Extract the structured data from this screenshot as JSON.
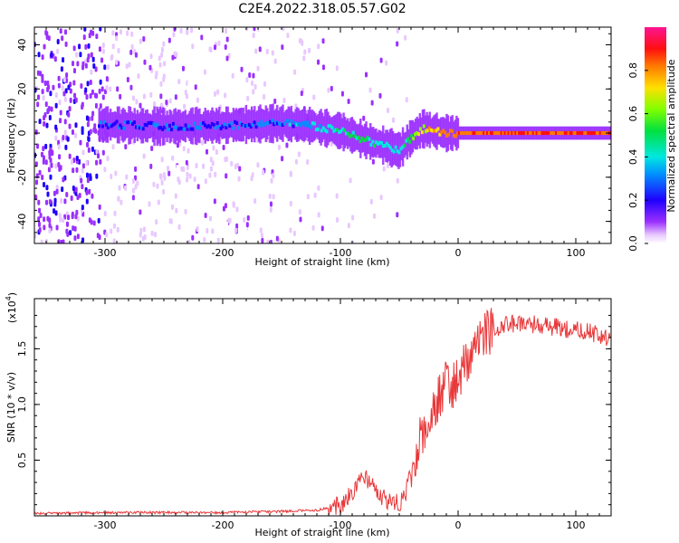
{
  "title": "C2E4.2022.318.05.57.G02",
  "colorbar": {
    "label": "Normalized spectral amplitude",
    "ticks": [
      "0.0",
      "0.2",
      "0.4",
      "0.6",
      "0.8"
    ],
    "tick_values": [
      0.0,
      0.2,
      0.4,
      0.6,
      0.8
    ]
  },
  "chart_data": [
    {
      "type": "heatmap",
      "xlabel": "Height of straight line (km)",
      "ylabel": "Frequency (Hz)",
      "xlim": [
        -360,
        130
      ],
      "ylim": [
        -50,
        48
      ],
      "x_ticks": [
        -300,
        -200,
        -100,
        0,
        100
      ],
      "x_tick_labels": [
        "-300",
        "-200",
        "-100",
        "0",
        "100"
      ],
      "y_ticks": [
        -40,
        -20,
        0,
        20,
        40
      ],
      "y_tick_labels": [
        "-40",
        "-20",
        "0",
        "20",
        "40"
      ],
      "value_range": [
        0,
        1
      ],
      "ridge": {
        "x": [
          -305,
          -250,
          -200,
          -150,
          -120,
          -100,
          -80,
          -60,
          -50,
          -45,
          -40,
          -30,
          -20,
          -10,
          0,
          50,
          100,
          130
        ],
        "y": [
          4,
          3,
          3.5,
          4.5,
          3,
          1,
          -3,
          -6,
          -8,
          -5,
          -2,
          2,
          1,
          0,
          0,
          0,
          0,
          0
        ],
        "amplitude": [
          0.3,
          0.3,
          0.3,
          0.35,
          0.4,
          0.5,
          0.55,
          0.45,
          0.5,
          0.55,
          0.6,
          0.75,
          0.8,
          0.85,
          0.88,
          0.9,
          0.9,
          0.9
        ]
      }
    },
    {
      "type": "line",
      "xlabel": "Height of straight line (km)",
      "ylabel": "SNR (10 * v/v)",
      "y_multiplier": "(x10",
      "y_multiplier_exp": "4",
      "y_multiplier_close": ")",
      "xlim": [
        -360,
        130
      ],
      "ylim": [
        0,
        1.95
      ],
      "x_ticks": [
        -300,
        -200,
        -100,
        0,
        100
      ],
      "x_tick_labels": [
        "-300",
        "-200",
        "-100",
        "0",
        "100"
      ],
      "y_ticks": [
        0.5,
        1.0,
        1.5
      ],
      "y_tick_labels": [
        "0.5",
        "1.0",
        "1.5"
      ],
      "series": [
        {
          "color": "#e8383a",
          "x": [
            -360,
            -300,
            -200,
            -150,
            -120,
            -100,
            -90,
            -85,
            -80,
            -75,
            -70,
            -65,
            -60,
            -55,
            -50,
            -45,
            -40,
            -35,
            -30,
            -25,
            -20,
            -15,
            -10,
            -5,
            0,
            5,
            10,
            15,
            20,
            25,
            30,
            35,
            40,
            50,
            60,
            70,
            80,
            90,
            100,
            110,
            120,
            130
          ],
          "y": [
            0.02,
            0.03,
            0.03,
            0.04,
            0.05,
            0.1,
            0.2,
            0.3,
            0.35,
            0.3,
            0.22,
            0.17,
            0.14,
            0.12,
            0.12,
            0.16,
            0.4,
            0.6,
            0.75,
            0.85,
            0.95,
            1.1,
            1.2,
            1.15,
            1.25,
            1.35,
            1.45,
            1.55,
            1.6,
            1.64,
            1.67,
            1.7,
            1.72,
            1.73,
            1.72,
            1.72,
            1.7,
            1.68,
            1.67,
            1.65,
            1.63,
            1.6
          ]
        }
      ]
    }
  ]
}
